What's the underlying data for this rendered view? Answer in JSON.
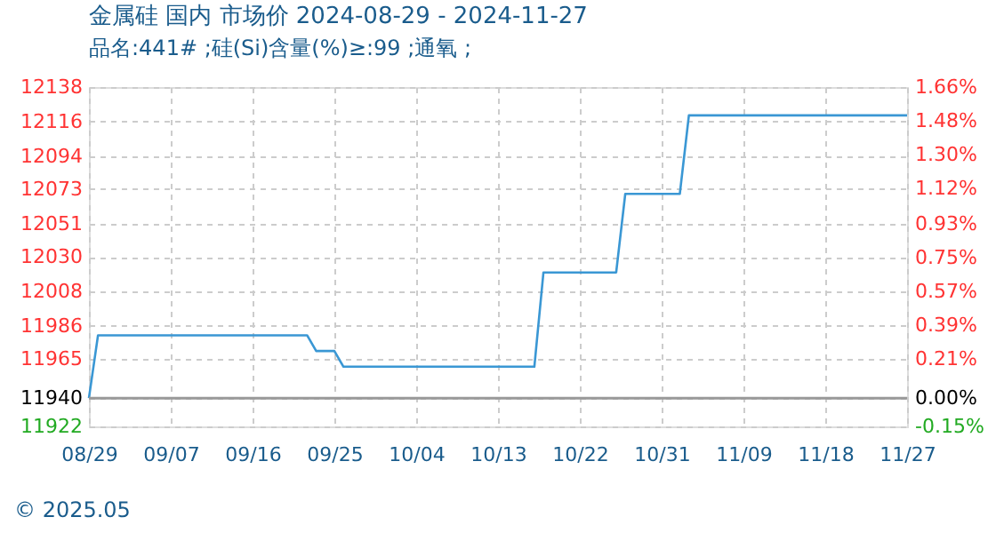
{
  "chart_data": {
    "type": "line",
    "title": "金属硅 国内 市场价 2024-08-29 - 2024-11-27",
    "subtitle": "品名:441# ;硅(Si)含量(%)≥:99 ;通氧 ;",
    "annotations": [
      "© 2025.05"
    ],
    "x": [
      "2024-08-29",
      "2024-08-30",
      "2024-09-22",
      "2024-09-23",
      "2024-09-25",
      "2024-09-26",
      "2024-10-17",
      "2024-10-18",
      "2024-10-26",
      "2024-10-27",
      "2024-11-02",
      "2024-11-03",
      "2024-11-27"
    ],
    "series": [
      {
        "color": "#3a97d4",
        "values": [
          11940,
          11980,
          11980,
          11970,
          11970,
          11960,
          11960,
          12020,
          12020,
          12070,
          12070,
          12120,
          12120
        ]
      }
    ],
    "xlim": [
      "2024-08-29",
      "2024-11-27"
    ],
    "xticks": [
      {
        "value": "2024-08-29",
        "label": "08/29"
      },
      {
        "value": "2024-09-07",
        "label": "09/07"
      },
      {
        "value": "2024-09-16",
        "label": "09/16"
      },
      {
        "value": "2024-09-25",
        "label": "09/25"
      },
      {
        "value": "2024-10-04",
        "label": "10/04"
      },
      {
        "value": "2024-10-13",
        "label": "10/13"
      },
      {
        "value": "2024-10-22",
        "label": "10/22"
      },
      {
        "value": "2024-10-31",
        "label": "10/31"
      },
      {
        "value": "2024-11-09",
        "label": "11/09"
      },
      {
        "value": "2024-11-18",
        "label": "11/18"
      },
      {
        "value": "2024-11-27",
        "label": "11/27"
      }
    ],
    "ylim": [
      11922,
      12138
    ],
    "yticks": [
      11922,
      11940,
      11965,
      11986,
      12008,
      12030,
      12051,
      12073,
      12094,
      12116,
      12138
    ],
    "y2lim": [
      -0.15,
      1.66
    ],
    "y2ticks": [
      {
        "value": -0.15,
        "label": "-0.15%"
      },
      {
        "value": 0,
        "label": "0.00%"
      },
      {
        "value": 0.21,
        "label": "0.21%"
      },
      {
        "value": 0.39,
        "label": "0.39%"
      },
      {
        "value": 0.57,
        "label": "0.57%"
      },
      {
        "value": 0.75,
        "label": "0.75%"
      },
      {
        "value": 0.93,
        "label": "0.93%"
      },
      {
        "value": 1.12,
        "label": "1.12%"
      },
      {
        "value": 1.3,
        "label": "1.30%"
      },
      {
        "value": 1.48,
        "label": "1.48%"
      },
      {
        "value": 1.66,
        "label": "1.66%"
      }
    ],
    "ref_lines": [
      {
        "axis": "y",
        "value": 11940,
        "color": "#999999"
      }
    ],
    "grid": true,
    "legend": false,
    "marker": "none",
    "line_style": "solid"
  }
}
